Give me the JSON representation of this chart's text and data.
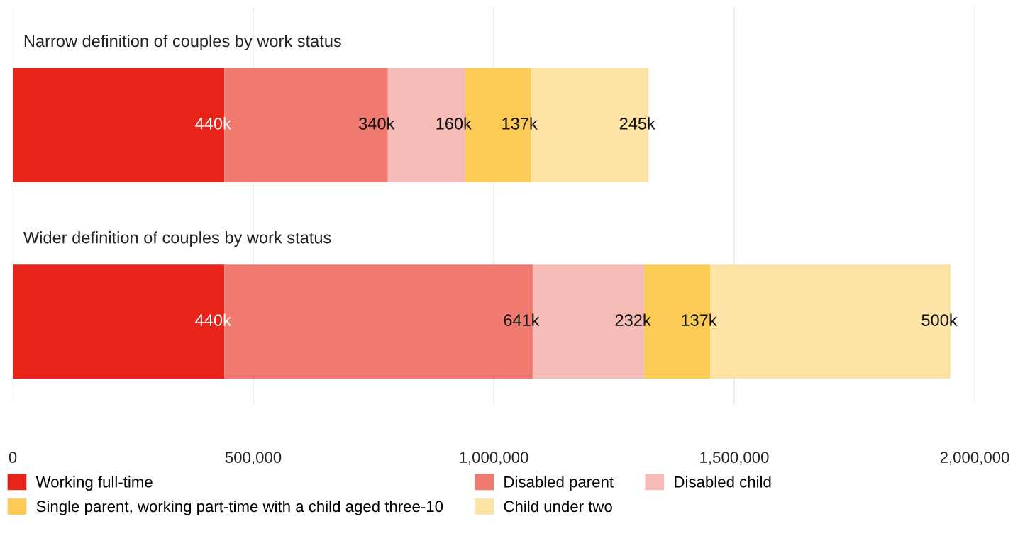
{
  "chart_data": {
    "type": "bar",
    "orientation": "horizontal",
    "stacked": true,
    "categories": [
      "Narrow definition of couples by work status",
      "Wider definition of couples by work status"
    ],
    "series": [
      {
        "name": "Working full-time",
        "color": "#e8231a",
        "values": [
          440000,
          440000
        ],
        "value_labels": [
          "440k",
          "440k"
        ]
      },
      {
        "name": "Disabled parent",
        "color": "#f07a70",
        "values": [
          340000,
          641000
        ],
        "value_labels": [
          "340k",
          "641k"
        ]
      },
      {
        "name": "Disabled child",
        "color": "#f5bbb7",
        "values": [
          160000,
          232000
        ],
        "value_labels": [
          "160k",
          "232k"
        ]
      },
      {
        "name": "Single parent, working part-time with a child aged three-10",
        "color": "#fccb55",
        "values": [
          137000,
          137000
        ],
        "value_labels": [
          "137k",
          "137k"
        ]
      },
      {
        "name": "Child under two",
        "color": "#fde3a6",
        "values": [
          245000,
          500000
        ],
        "value_labels": [
          "245k",
          "500k"
        ]
      }
    ],
    "xlim": [
      0,
      2000000
    ],
    "xticks": [
      0,
      {
        "value": 500000,
        "label": "500,000"
      },
      {
        "value": 1000000,
        "label": "1,000,000"
      },
      {
        "value": 1500000,
        "label": "1,500,000"
      },
      {
        "value": 2000000,
        "label": "2,000,000"
      }
    ],
    "grid": "x",
    "legend": "bottom",
    "tick_labels": "x"
  }
}
